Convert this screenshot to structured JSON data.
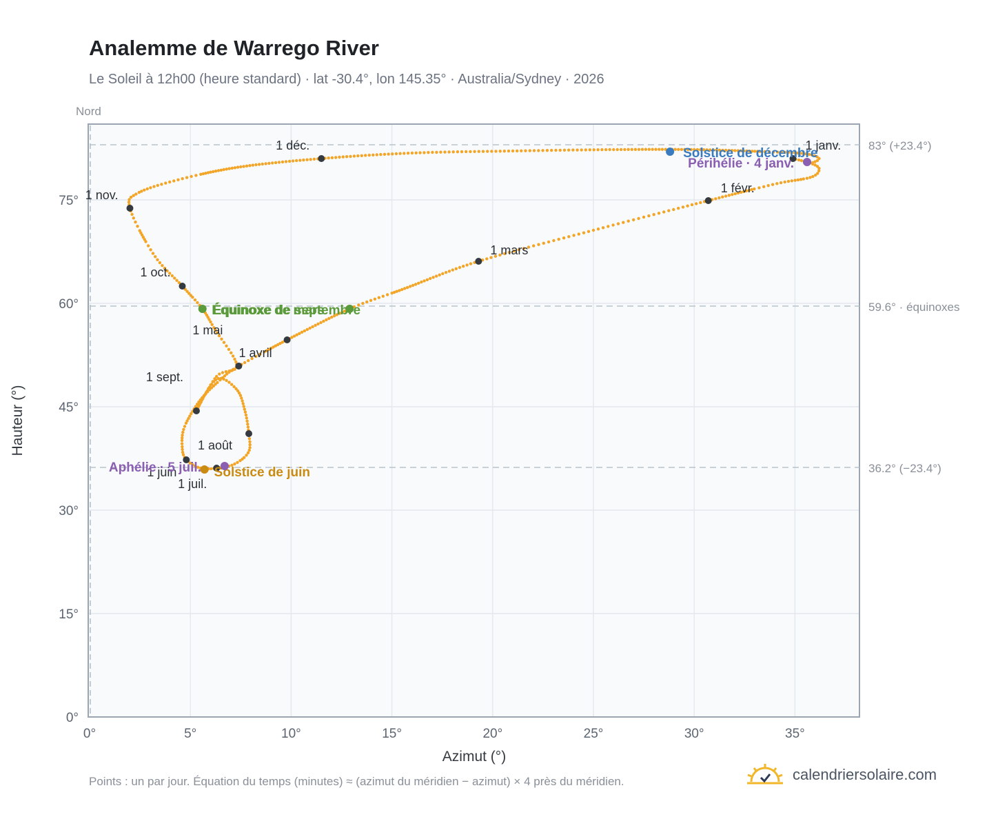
{
  "title": "Analemme de Warrego River",
  "subtitle": "Le Soleil à 12h00 (heure standard) · lat -30.4°, lon 145.35° · Australia/Sydney · 2026",
  "footnote": "Points : un par jour. Équation du temps (minutes) ≈ (azimut du méridien − azimut) × 4 près du méridien.",
  "brand": {
    "name": "calendriersolaire.com",
    "icon": "sun-check-icon"
  },
  "colors": {
    "curve": "#f2a526",
    "month_marker": "#343a40",
    "equinox": "#5b9a3b",
    "june_solstice": "#c98b12",
    "december_solstice": "#3a7abf",
    "apsis": "#8a5eb0",
    "reference_line": "#b8c2cc",
    "grid": "#e3e8ee",
    "plot_bg": "#f8fafc"
  },
  "chart_data": {
    "type": "scatter",
    "xlabel": "Azimut (°)",
    "ylabel": "Hauteur (°)",
    "xlim": [
      0,
      38.2
    ],
    "ylim": [
      0,
      86
    ],
    "x_ticks": [
      {
        "v": 0,
        "label": "0°"
      },
      {
        "v": 5,
        "label": "5°"
      },
      {
        "v": 10,
        "label": "10°"
      },
      {
        "v": 15,
        "label": "15°"
      },
      {
        "v": 20,
        "label": "20°"
      },
      {
        "v": 25,
        "label": "25°"
      },
      {
        "v": 30,
        "label": "30°"
      },
      {
        "v": 35,
        "label": "35°"
      }
    ],
    "y_ticks": [
      {
        "v": 0,
        "label": "0°"
      },
      {
        "v": 15,
        "label": "15°"
      },
      {
        "v": 30,
        "label": "30°"
      },
      {
        "v": 45,
        "label": "45°"
      },
      {
        "v": 60,
        "label": "60°"
      },
      {
        "v": 75,
        "label": "75°"
      }
    ],
    "direction_label": {
      "x": 0,
      "label": "Nord"
    },
    "reference_lines": [
      {
        "y": 83.0,
        "label": "83° (+23.4°)"
      },
      {
        "y": 59.6,
        "label": "59.6° · équinoxes"
      },
      {
        "y": 36.2,
        "label": "36.2° (−23.4°)"
      }
    ],
    "grid": true,
    "month_markers": [
      {
        "label": "1 janv.",
        "x": 34.9,
        "y": 81.0
      },
      {
        "label": "1 févr.",
        "x": 30.7,
        "y": 74.9
      },
      {
        "label": "1 mars",
        "x": 19.3,
        "y": 66.1
      },
      {
        "label": "1 avril",
        "x": 9.8,
        "y": 54.7
      },
      {
        "label": "1 mai",
        "x": 7.4,
        "y": 50.9
      },
      {
        "label": "1 juin",
        "x": 4.8,
        "y": 37.3
      },
      {
        "label": "1 juil.",
        "x": 6.3,
        "y": 36.1
      },
      {
        "label": "1 août",
        "x": 7.9,
        "y": 41.1
      },
      {
        "label": "1 sept.",
        "x": 5.3,
        "y": 44.4
      },
      {
        "label": "1 oct.",
        "x": 4.6,
        "y": 62.5
      },
      {
        "label": "1 nov.",
        "x": 2.0,
        "y": 73.8
      },
      {
        "label": "1 déc.",
        "x": 11.5,
        "y": 81.0
      }
    ],
    "events": [
      {
        "label": "Équinoxe de mars",
        "x": 12.9,
        "y": 59.2,
        "kind": "equinox"
      },
      {
        "label": "Équinoxe de septembre",
        "x": 5.6,
        "y": 59.2,
        "kind": "equinox"
      },
      {
        "label": "Solstice de juin",
        "x": 5.7,
        "y": 35.9,
        "kind": "june_solstice"
      },
      {
        "label": "Solstice de décembre",
        "x": 28.8,
        "y": 82.0,
        "kind": "december_solstice"
      },
      {
        "label": "Aphélie · 5 juil.",
        "x": 6.7,
        "y": 36.4,
        "kind": "apsis"
      },
      {
        "label": "Périhélie · 4 janv.",
        "x": 35.6,
        "y": 80.5,
        "kind": "apsis"
      }
    ],
    "path_nodes": [
      [
        34.9,
        81.0
      ],
      [
        35.8,
        80.3
      ],
      [
        36.2,
        79.5
      ],
      [
        35.8,
        78.3
      ],
      [
        34.0,
        77.3
      ],
      [
        30.7,
        74.9
      ],
      [
        25.0,
        70.6
      ],
      [
        19.3,
        66.1
      ],
      [
        15.5,
        62.0
      ],
      [
        12.9,
        59.2
      ],
      [
        9.8,
        54.7
      ],
      [
        7.4,
        50.9
      ],
      [
        6.6,
        49.2
      ],
      [
        5.5,
        46.0
      ],
      [
        4.7,
        42.0
      ],
      [
        4.6,
        39.0
      ],
      [
        4.8,
        37.3
      ],
      [
        5.5,
        36.1
      ],
      [
        6.3,
        36.1
      ],
      [
        7.2,
        36.7
      ],
      [
        7.9,
        38.5
      ],
      [
        7.9,
        41.1
      ],
      [
        7.7,
        44.5
      ],
      [
        7.3,
        47.5
      ],
      [
        6.3,
        49.0
      ],
      [
        5.3,
        44.4
      ],
      [
        6.3,
        49.4
      ],
      [
        7.3,
        51.0
      ],
      [
        6.2,
        56.3
      ],
      [
        5.6,
        59.2
      ],
      [
        4.6,
        62.5
      ],
      [
        3.2,
        67.0
      ],
      [
        2.0,
        73.8
      ],
      [
        2.4,
        76.0
      ],
      [
        4.5,
        78.0
      ],
      [
        7.5,
        79.8
      ],
      [
        11.5,
        81.0
      ],
      [
        16.0,
        81.8
      ],
      [
        21.0,
        82.1
      ],
      [
        26.0,
        82.3
      ],
      [
        30.0,
        82.3
      ],
      [
        33.5,
        82.0
      ],
      [
        35.5,
        81.7
      ],
      [
        36.2,
        81.0
      ],
      [
        35.8,
        80.3
      ]
    ],
    "series": []
  }
}
